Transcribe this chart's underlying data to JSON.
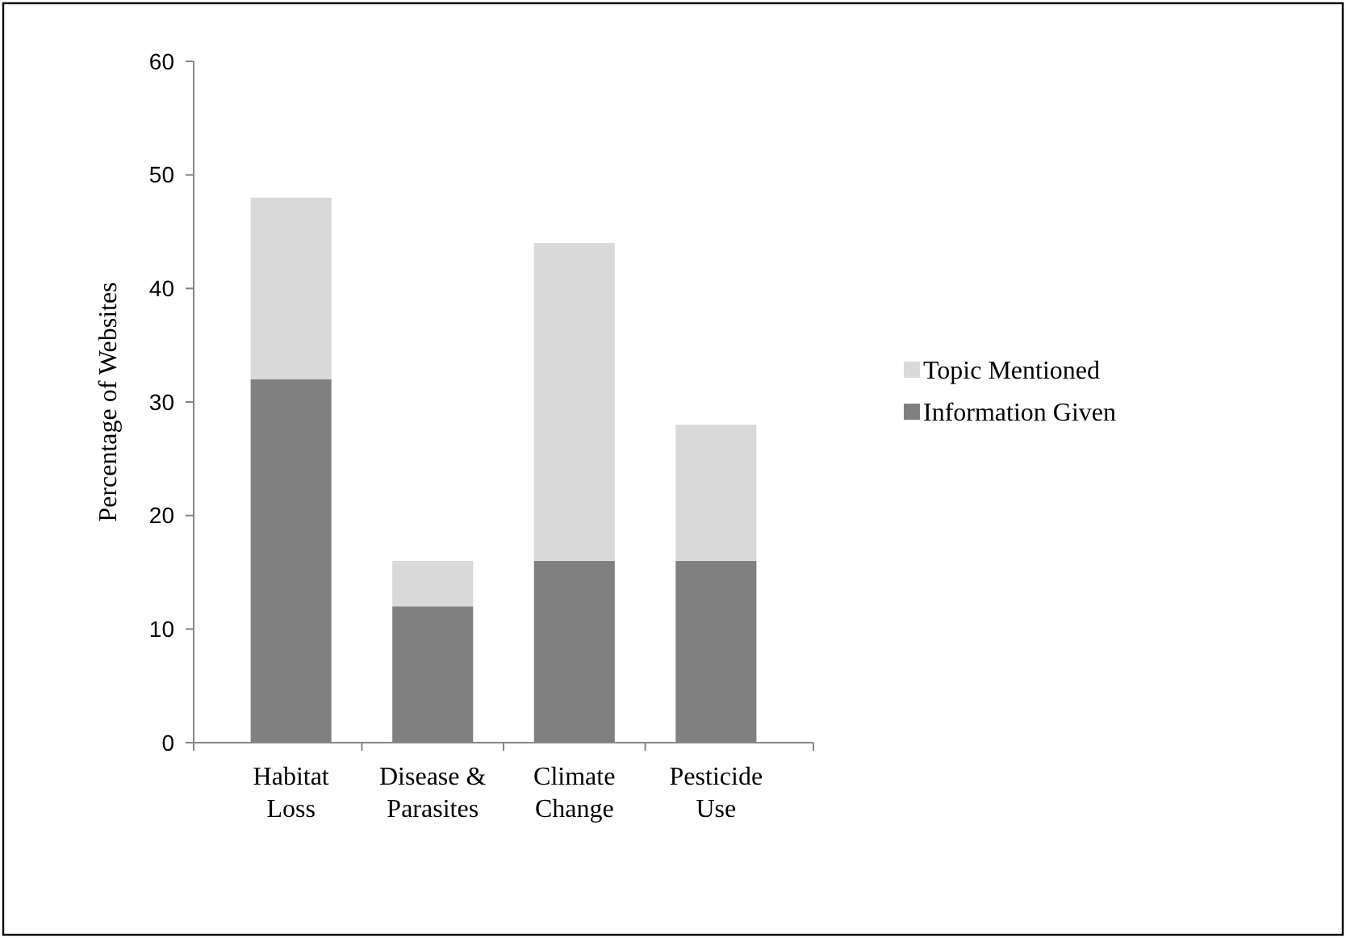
{
  "chart_data": {
    "type": "bar",
    "stacked": true,
    "ylabel": "Percentage of Websites",
    "categories": [
      "Habitat Loss",
      "Disease & Parasites",
      "Climate Change",
      "Pesticide Use"
    ],
    "series": [
      {
        "name": "Information Given",
        "color": "#808080",
        "values": [
          32,
          12,
          16,
          16
        ]
      },
      {
        "name": "Topic Mentioned",
        "color": "#d9d9d9",
        "values": [
          16,
          4,
          28,
          12
        ]
      }
    ],
    "ylim": [
      0,
      60
    ],
    "yticks": [
      0,
      10,
      20,
      30,
      40,
      50,
      60
    ],
    "legend": "right",
    "grid": false
  }
}
